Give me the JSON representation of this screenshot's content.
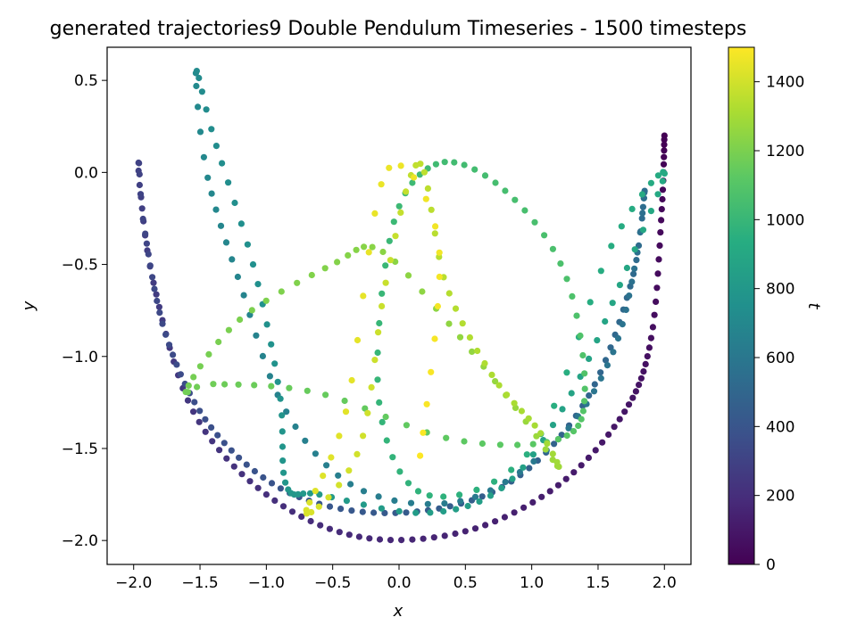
{
  "chart_data": {
    "type": "scatter",
    "title": "generated trajectories9 Double Pendulum Timeseries - 1500 timesteps",
    "xlabel": "x",
    "ylabel": "y",
    "colorbar_label": "t",
    "xlim": [
      -2.2,
      2.2
    ],
    "ylim": [
      -2.13,
      0.68
    ],
    "clim": [
      0,
      1500
    ],
    "xticks": [
      -2.0,
      -1.5,
      -1.0,
      -0.5,
      0.0,
      0.5,
      1.0,
      1.5,
      2.0
    ],
    "xtick_labels": [
      "−2.0",
      "−1.5",
      "−1.0",
      "−0.5",
      "0.0",
      "0.5",
      "1.0",
      "1.5",
      "2.0"
    ],
    "yticks": [
      0.5,
      0.0,
      -0.5,
      -1.0,
      -1.5,
      -2.0
    ],
    "ytick_labels": [
      "0.5",
      "0.0",
      "−0.5",
      "−1.0",
      "−1.5",
      "−2.0"
    ],
    "cticks": [
      0,
      200,
      400,
      600,
      800,
      1000,
      1200,
      1400
    ],
    "ctick_labels": [
      "0",
      "200",
      "400",
      "600",
      "800",
      "1000",
      "1200",
      "1400"
    ],
    "colormap": "viridis",
    "timesteps": 1500,
    "color_stops": [
      "#440154",
      "#472c7a",
      "#3b518b",
      "#2c718e",
      "#21908d",
      "#27ad81",
      "#5cc863",
      "#aadc32",
      "#fde725"
    ],
    "trajectory_keyframes": [
      {
        "t": 0,
        "x": 2.0,
        "y": 0.2
      },
      {
        "t": 30,
        "x": 1.98,
        "y": -0.2
      },
      {
        "t": 60,
        "x": 1.9,
        "y": -0.9
      },
      {
        "t": 90,
        "x": 1.7,
        "y": -1.3
      },
      {
        "t": 120,
        "x": 1.2,
        "y": -1.7
      },
      {
        "t": 150,
        "x": 0.5,
        "y": -1.95
      },
      {
        "t": 180,
        "x": -0.3,
        "y": -1.98
      },
      {
        "t": 210,
        "x": -1.0,
        "y": -1.75
      },
      {
        "t": 240,
        "x": -1.55,
        "y": -1.3
      },
      {
        "t": 270,
        "x": -1.85,
        "y": -0.6
      },
      {
        "t": 290,
        "x": -1.95,
        "y": -0.1
      },
      {
        "t": 300,
        "x": -1.96,
        "y": 0.05
      },
      {
        "t": 310,
        "x": -1.92,
        "y": -0.3
      },
      {
        "t": 340,
        "x": -1.75,
        "y": -0.9
      },
      {
        "t": 370,
        "x": -1.4,
        "y": -1.4
      },
      {
        "t": 400,
        "x": -0.8,
        "y": -1.75
      },
      {
        "t": 430,
        "x": 0.0,
        "y": -1.85
      },
      {
        "t": 460,
        "x": 0.8,
        "y": -1.7
      },
      {
        "t": 490,
        "x": 1.4,
        "y": -1.25
      },
      {
        "t": 520,
        "x": 1.75,
        "y": -0.6
      },
      {
        "t": 545,
        "x": 1.85,
        "y": -0.1
      },
      {
        "t": 560,
        "x": 1.78,
        "y": -0.5
      },
      {
        "t": 580,
        "x": 1.6,
        "y": -1.0
      },
      {
        "t": 600,
        "x": 1.2,
        "y": -1.45
      },
      {
        "t": 620,
        "x": 0.5,
        "y": -1.78
      },
      {
        "t": 640,
        "x": -0.3,
        "y": -1.72
      },
      {
        "t": 660,
        "x": -0.85,
        "y": -1.3
      },
      {
        "t": 680,
        "x": -1.2,
        "y": -0.6
      },
      {
        "t": 700,
        "x": -1.45,
        "y": 0.0
      },
      {
        "t": 715,
        "x": -1.53,
        "y": 0.55
      },
      {
        "t": 730,
        "x": -1.4,
        "y": 0.2
      },
      {
        "t": 750,
        "x": -1.1,
        "y": -0.5
      },
      {
        "t": 770,
        "x": -0.9,
        "y": -1.2
      },
      {
        "t": 790,
        "x": -0.85,
        "y": -1.7
      },
      {
        "t": 810,
        "x": -0.6,
        "y": -1.75
      },
      {
        "t": 830,
        "x": 0.2,
        "y": -1.85
      },
      {
        "t": 850,
        "x": 0.8,
        "y": -1.7
      },
      {
        "t": 870,
        "x": 1.3,
        "y": -1.2
      },
      {
        "t": 890,
        "x": 1.7,
        "y": -0.55
      },
      {
        "t": 910,
        "x": 2.0,
        "y": 0.0
      },
      {
        "t": 930,
        "x": 1.6,
        "y": -0.4
      },
      {
        "t": 950,
        "x": 1.0,
        "y": -1.5
      },
      {
        "t": 970,
        "x": 0.2,
        "y": -1.75
      },
      {
        "t": 990,
        "x": -0.15,
        "y": -1.25
      },
      {
        "t": 1010,
        "x": -0.05,
        "y": -0.3
      },
      {
        "t": 1030,
        "x": 0.3,
        "y": 0.05
      },
      {
        "t": 1050,
        "x": 0.8,
        "y": -0.1
      },
      {
        "t": 1070,
        "x": 1.25,
        "y": -0.55
      },
      {
        "t": 1090,
        "x": 1.4,
        "y": -1.2
      },
      {
        "t": 1110,
        "x": 1.2,
        "y": -1.45
      },
      {
        "t": 1130,
        "x": 0.4,
        "y": -1.45
      },
      {
        "t": 1150,
        "x": -0.6,
        "y": -1.2
      },
      {
        "t": 1170,
        "x": -1.4,
        "y": -1.15
      },
      {
        "t": 1180,
        "x": -1.6,
        "y": -1.18
      },
      {
        "t": 1200,
        "x": -1.2,
        "y": -0.8
      },
      {
        "t": 1220,
        "x": -0.5,
        "y": -0.5
      },
      {
        "t": 1235,
        "x": -0.15,
        "y": -0.42
      },
      {
        "t": 1250,
        "x": 0.35,
        "y": -0.8
      },
      {
        "t": 1270,
        "x": 0.9,
        "y": -1.3
      },
      {
        "t": 1285,
        "x": 1.2,
        "y": -1.6
      },
      {
        "t": 1300,
        "x": 1.05,
        "y": -1.4
      },
      {
        "t": 1320,
        "x": 0.7,
        "y": -1.1
      },
      {
        "t": 1340,
        "x": 0.35,
        "y": -0.6
      },
      {
        "t": 1360,
        "x": 0.15,
        "y": 0.05
      },
      {
        "t": 1380,
        "x": -0.1,
        "y": -0.6
      },
      {
        "t": 1400,
        "x": -0.3,
        "y": -1.5
      },
      {
        "t": 1420,
        "x": -0.7,
        "y": -1.85
      },
      {
        "t": 1440,
        "x": -0.4,
        "y": -1.3
      },
      {
        "t": 1460,
        "x": -0.1,
        "y": 0.0
      },
      {
        "t": 1475,
        "x": 0.3,
        "y": -0.4
      },
      {
        "t": 1499,
        "x": 0.15,
        "y": -1.6
      }
    ]
  }
}
